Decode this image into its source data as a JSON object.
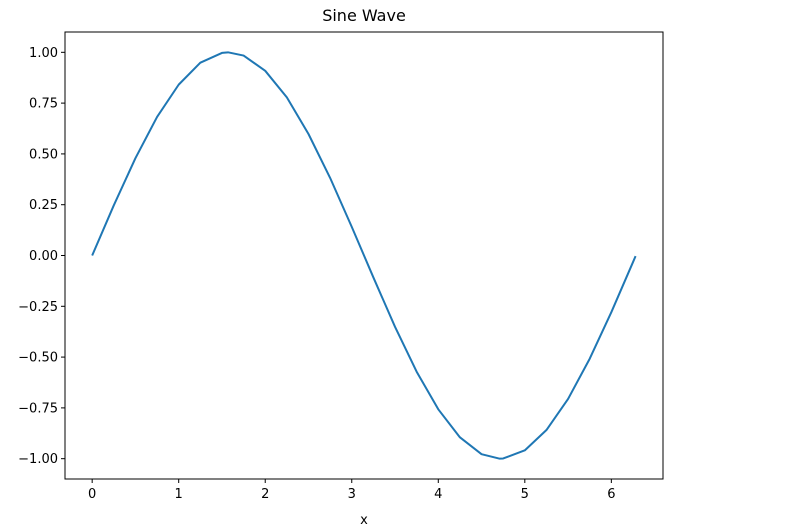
{
  "chart_data": {
    "type": "line",
    "title": "Sine Wave",
    "xlabel": "x",
    "x": [
      0,
      0.25,
      0.5,
      0.75,
      1,
      1.25,
      1.5,
      1.57,
      1.75,
      2,
      2.25,
      2.5,
      2.75,
      3,
      3.25,
      3.5,
      3.75,
      4,
      4.25,
      4.5,
      4.71,
      4.75,
      5,
      5.25,
      5.5,
      5.75,
      6,
      6.25,
      6.28
    ],
    "series": [
      {
        "color": "#1f77b4",
        "values": [
          0,
          0.247,
          0.479,
          0.682,
          0.841,
          0.949,
          0.997,
          1.0,
          0.984,
          0.909,
          0.778,
          0.598,
          0.382,
          0.141,
          -0.108,
          -0.351,
          -0.572,
          -0.757,
          -0.895,
          -0.978,
          -1.0,
          -0.999,
          -0.959,
          -0.859,
          -0.706,
          -0.508,
          -0.279,
          -0.033,
          -0.003
        ]
      }
    ],
    "xlim": [
      -0.314,
      6.597
    ],
    "ylim": [
      -1.1,
      1.1
    ],
    "xticks": [
      0,
      1,
      2,
      3,
      4,
      5,
      6
    ],
    "yticks": [
      {
        "value": -1,
        "label": "−1.00"
      },
      {
        "value": -0.75,
        "label": "−0.75"
      },
      {
        "value": -0.5,
        "label": "−0.50"
      },
      {
        "value": -0.25,
        "label": "−0.25"
      },
      {
        "value": 0,
        "label": "0.00"
      },
      {
        "value": 0.25,
        "label": "0.25"
      },
      {
        "value": 0.5,
        "label": "0.50"
      },
      {
        "value": 0.75,
        "label": "0.75"
      },
      {
        "value": 1,
        "label": "1.00"
      }
    ],
    "grid": false
  }
}
